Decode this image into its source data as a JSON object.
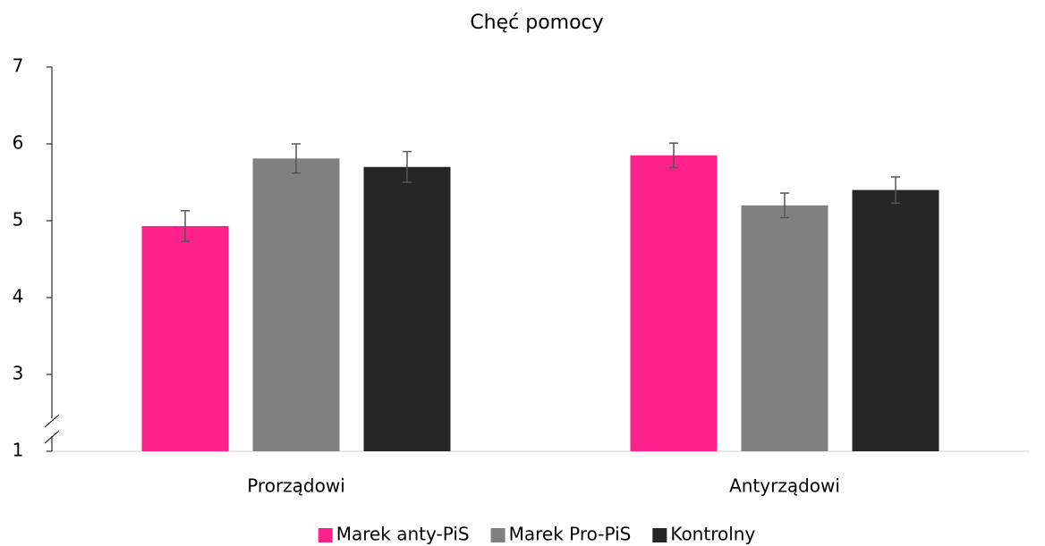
{
  "chart_data": {
    "type": "bar",
    "title": "Chęć pomocy",
    "categories": [
      "Prorządowi",
      "Antyrządowi"
    ],
    "series": [
      {
        "name": "Marek anty-PiS",
        "color": "#ff218c",
        "values": [
          4.93,
          5.85
        ],
        "errors": [
          0.2,
          0.16
        ]
      },
      {
        "name": "Marek Pro-PiS",
        "color": "#808080",
        "values": [
          5.81,
          5.2
        ],
        "errors": [
          0.19,
          0.16
        ]
      },
      {
        "name": "Kontrolny",
        "color": "#262626",
        "values": [
          5.7,
          5.4
        ],
        "errors": [
          0.2,
          0.17
        ]
      }
    ],
    "ylim": [
      1,
      7
    ],
    "yticks": [
      1,
      3,
      4,
      5,
      6,
      7
    ],
    "axis_break": true,
    "legend": "bottom"
  }
}
